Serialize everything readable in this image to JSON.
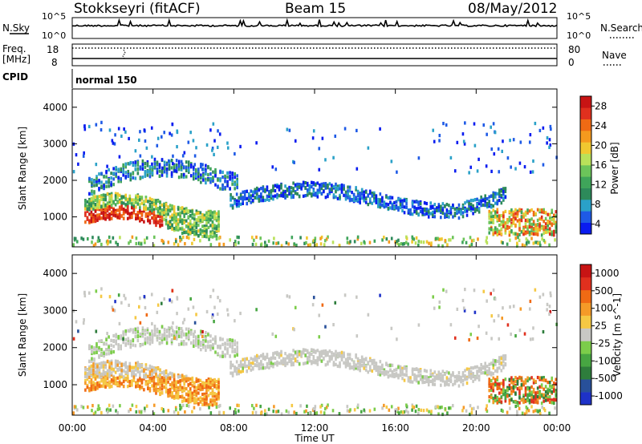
{
  "header": {
    "station": "Stokkseyri (fitACF)",
    "beam": "Beam 15",
    "date": "08/May/2012"
  },
  "status_panels": {
    "nsky_label": "N.Sky",
    "nsky_ticks": [
      "10^5",
      "10^0"
    ],
    "nsearch_label": "N.Search",
    "nsearch_ticks": [
      "10^5",
      "10^0"
    ],
    "freq_label": "Freq.",
    "freq_unit": "[MHz]",
    "freq_ticks": [
      "18",
      "8"
    ],
    "nave_label": "Nave",
    "nave_ticks": [
      "80",
      "0"
    ],
    "cpid_label": "CPID",
    "cpid_value": "normal 150"
  },
  "chart_data": [
    {
      "type": "heatmap",
      "name": "power",
      "xlabel": "",
      "ylabel": "Slant Range [km]",
      "xlim": [
        "00:00",
        "24:00"
      ],
      "ylim": [
        180,
        4500
      ],
      "y_ticks": [
        "4000",
        "3000",
        "2000",
        "1000"
      ],
      "colorbar": {
        "label": "Power [dB]",
        "ticks": [
          "28",
          "24",
          "20",
          "16",
          "12",
          "8",
          "4"
        ],
        "range": [
          0,
          30
        ],
        "colors": [
          "#0a1cf0",
          "#1e5ae6",
          "#2aa1c8",
          "#2d8a5a",
          "#3fa55a",
          "#6cc45a",
          "#b9e15a",
          "#f0c830",
          "#f59a1e",
          "#f06a14",
          "#e0301e",
          "#c81414"
        ]
      },
      "grid": false
    },
    {
      "type": "heatmap",
      "name": "velocity",
      "xlabel": "Time UT",
      "ylabel": "Slant Range [km]",
      "xlim": [
        "00:00",
        "24:00"
      ],
      "ylim": [
        180,
        4500
      ],
      "x_ticks": [
        "00:00",
        "04:00",
        "08:00",
        "12:00",
        "16:00",
        "20:00",
        "00:00"
      ],
      "y_ticks": [
        "4000",
        "3000",
        "2000",
        "1000"
      ],
      "colorbar": {
        "label": "Velocity [m s^-1]",
        "ticks": [
          "1000",
          "500",
          "100",
          "25",
          "-25",
          "-100",
          "-500",
          "-1000"
        ],
        "colors": [
          "#1e32c8",
          "#28509a",
          "#2e7d3c",
          "#47a642",
          "#7ccd4a",
          "#c8c8c4",
          "#f5c844",
          "#f59a28",
          "#f06a14",
          "#e0301e",
          "#c81414"
        ]
      },
      "grid": false
    }
  ],
  "axis": {
    "xlabel": "Time UT",
    "x_ticks": [
      "00:00",
      "04:00",
      "08:00",
      "12:00",
      "16:00",
      "20:00",
      "00:00"
    ]
  }
}
